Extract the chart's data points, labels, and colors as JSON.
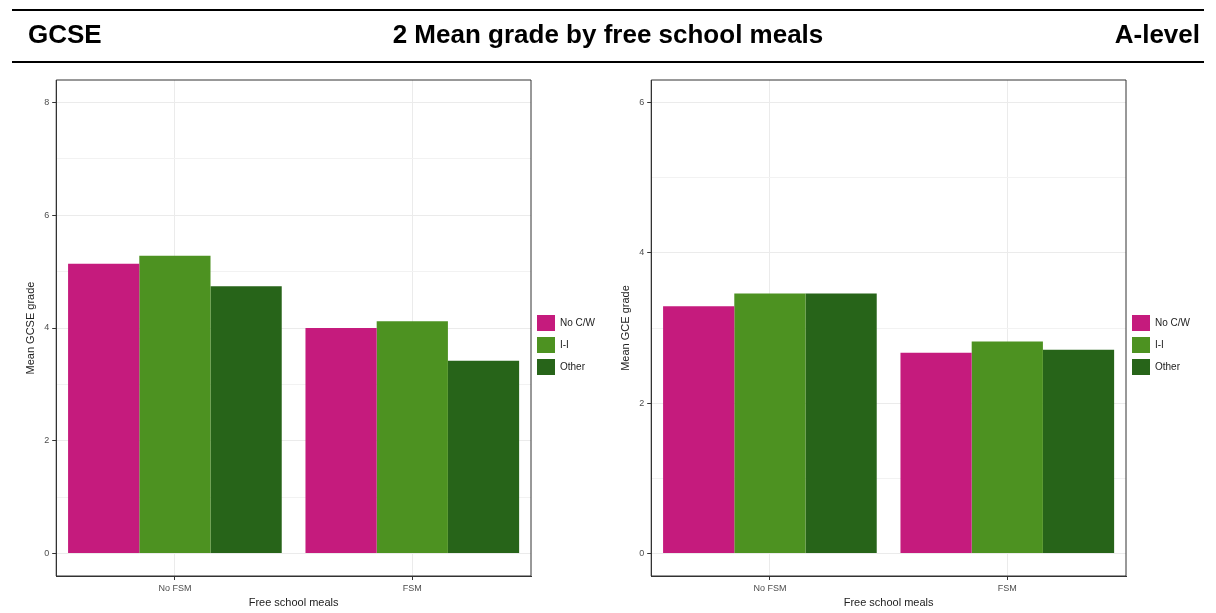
{
  "chart_data": [
    {
      "type": "bar",
      "title": "GCSE",
      "subtitle": "2 Mean grade by free school meals",
      "xlabel": "Free school meals",
      "ylabel": "Mean GCSE grade",
      "categories": [
        "No FSM",
        "FSM"
      ],
      "series": [
        {
          "name": "No C/W",
          "color": "#c51b7d",
          "values": [
            5.14,
            4.0
          ]
        },
        {
          "name": "I-I",
          "color": "#4d9221",
          "values": [
            5.28,
            4.12
          ]
        },
        {
          "name": "Other",
          "color": "#276419",
          "values": [
            4.74,
            3.42
          ]
        }
      ],
      "ylim": [
        -0.4,
        8.4
      ],
      "yticks": [
        0,
        {
          "value": 1,
          "label": null
        },
        2,
        {
          "value": 3,
          "label": null
        },
        4,
        {
          "value": 5,
          "label": null
        },
        6,
        {
          "value": 7,
          "label": null
        },
        8
      ],
      "grid": true,
      "legend": "right"
    },
    {
      "type": "bar",
      "title": "A-level",
      "xlabel": "Free school meals",
      "ylabel": "Mean GCE grade",
      "categories": [
        "No FSM",
        "FSM"
      ],
      "series": [
        {
          "name": "No C/W",
          "color": "#c51b7d",
          "values": [
            3.29,
            2.67
          ]
        },
        {
          "name": "I-I",
          "color": "#4d9221",
          "values": [
            3.46,
            2.82
          ]
        },
        {
          "name": "Other",
          "color": "#276419",
          "values": [
            3.46,
            2.71
          ]
        }
      ],
      "ylim": [
        -0.3,
        6.3
      ],
      "yticks": [
        0,
        {
          "value": 1,
          "label": null
        },
        2,
        {
          "value": 3,
          "label": null
        },
        4,
        {
          "value": 5,
          "label": null
        },
        6
      ],
      "grid": true,
      "legend": "right"
    }
  ]
}
